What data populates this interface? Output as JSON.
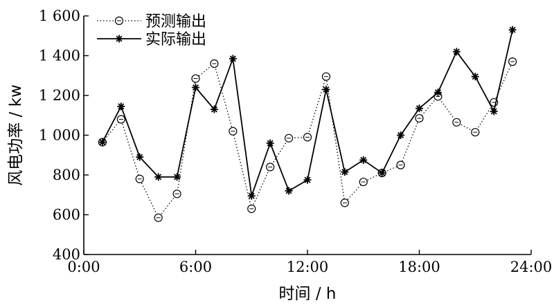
{
  "chart_data": {
    "type": "line",
    "xlabel": "时间 / h",
    "ylabel": "风电功率 / kw",
    "x_ticks": [
      "0:00",
      "6:00",
      "12:00",
      "18:00",
      "24:00"
    ],
    "y_ticks": [
      "400",
      "600",
      "800",
      "1 000",
      "1 200",
      "1 400",
      "1 600"
    ],
    "xlim": [
      0,
      24
    ],
    "ylim": [
      400,
      1600
    ],
    "grid": false,
    "legend_position": "top-left",
    "series": [
      {
        "name": "预测输出",
        "style": "dotted",
        "marker": "circle",
        "color": "#000000",
        "x": [
          1,
          2,
          3,
          4,
          5,
          6,
          7,
          8,
          9,
          10,
          11,
          12,
          13,
          14,
          15,
          16,
          17,
          18,
          19,
          20,
          21,
          22,
          23
        ],
        "values": [
          965,
          1080,
          780,
          585,
          705,
          1285,
          1360,
          1020,
          630,
          840,
          985,
          990,
          1295,
          660,
          765,
          810,
          850,
          1085,
          1195,
          1065,
          1015,
          1165,
          1370
        ]
      },
      {
        "name": "实际输出",
        "style": "solid",
        "marker": "star",
        "color": "#000000",
        "x": [
          1,
          2,
          3,
          4,
          5,
          6,
          7,
          8,
          9,
          10,
          11,
          12,
          13,
          14,
          15,
          16,
          17,
          18,
          19,
          20,
          21,
          22,
          23
        ],
        "values": [
          965,
          1145,
          890,
          790,
          790,
          1240,
          1130,
          1385,
          695,
          960,
          720,
          775,
          1230,
          815,
          875,
          810,
          1000,
          1135,
          1215,
          1420,
          1295,
          1120,
          1530
        ]
      }
    ]
  }
}
